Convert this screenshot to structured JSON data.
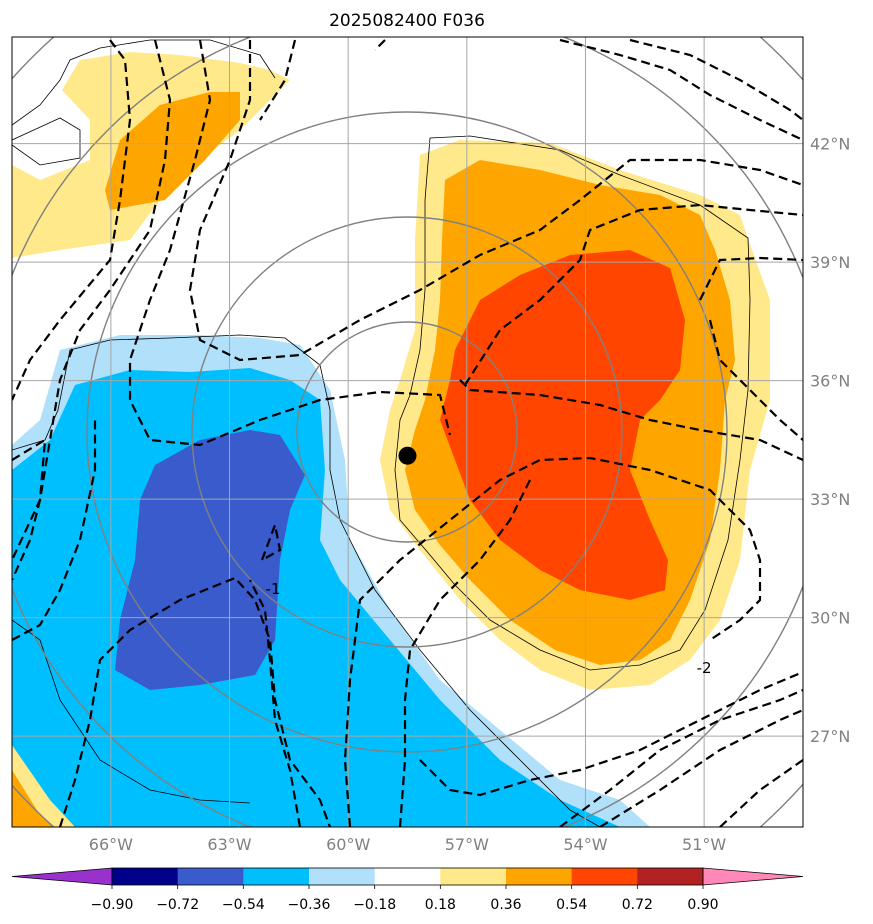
{
  "chart_data": {
    "type": "contour-map",
    "title": "2025082400 F036",
    "lon_range": [
      -68.5,
      -48.5
    ],
    "lat_range": [
      24.7,
      44.7
    ],
    "lon_ticks": [
      -66,
      -63,
      -60,
      -57,
      -54,
      -51
    ],
    "lon_tick_labels": [
      "66°W",
      "63°W",
      "60°W",
      "57°W",
      "54°W",
      "51°W"
    ],
    "lat_ticks": [
      42,
      39,
      36,
      33,
      30,
      27
    ],
    "lat_tick_labels": [
      "42°N",
      "39°N",
      "36°N",
      "33°N",
      "30°N",
      "27°N"
    ],
    "colorbar": {
      "levels": [
        -0.9,
        -0.72,
        -0.54,
        -0.36,
        -0.18,
        0.18,
        0.36,
        0.54,
        0.72,
        0.9
      ],
      "tick_labels": [
        "−0.90",
        "−0.72",
        "−0.54",
        "−0.36",
        "−0.18",
        "0.18",
        "0.36",
        "0.54",
        "0.72",
        "0.90"
      ],
      "colors": [
        "#9932CC",
        "#00008B",
        "#3A5BCC",
        "#00BFFF",
        "#B0E0FA",
        "#FFFFFF",
        "#FFE98A",
        "#FFA500",
        "#FF4500",
        "#B22222",
        "#FF88B8"
      ],
      "extend": "both"
    },
    "center_marker": {
      "lon": -58.5,
      "lat": 34.1
    },
    "contour_labels": [
      {
        "text": "-1",
        "lon": -61.9,
        "lat": 30.6
      },
      {
        "text": "-2",
        "lon": -51.0,
        "lat": 28.6
      }
    ],
    "range_rings_deg": [
      2.8,
      5.6,
      8.4,
      11.2,
      14.0
    ]
  }
}
